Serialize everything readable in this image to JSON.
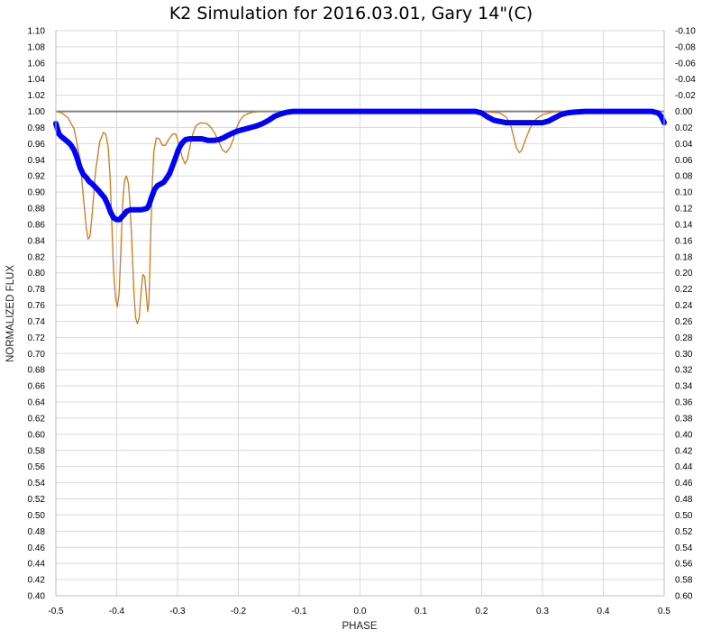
{
  "chart_data": {
    "type": "line",
    "title": "K2 Simulation for 2016.03.01, Gary 14\"(C)",
    "xlabel": "PHASE",
    "ylabel": "NORMALIZED FLUX",
    "xlim": [
      -0.5,
      0.5
    ],
    "ylim": [
      0.4,
      1.1
    ],
    "y2lim": [
      0.6,
      -0.1
    ],
    "grid": true,
    "x_ticks": [
      "-0.5",
      "-0.4",
      "-0.3",
      "-0.2",
      "-0.1",
      "0.0",
      "0.1",
      "0.2",
      "0.3",
      "0.4",
      "0.5"
    ],
    "y_ticks": [
      "0.40",
      "0.42",
      "0.44",
      "0.46",
      "0.48",
      "0.50",
      "0.52",
      "0.54",
      "0.56",
      "0.58",
      "0.60",
      "0.62",
      "0.64",
      "0.66",
      "0.68",
      "0.70",
      "0.72",
      "0.74",
      "0.76",
      "0.78",
      "0.80",
      "0.82",
      "0.84",
      "0.86",
      "0.88",
      "0.90",
      "0.92",
      "0.94",
      "0.96",
      "0.98",
      "1.00",
      "1.02",
      "1.04",
      "1.06",
      "1.08",
      "1.10"
    ],
    "y2_ticks": [
      "0.60",
      "0.58",
      "0.56",
      "0.54",
      "0.52",
      "0.50",
      "0.48",
      "0.46",
      "0.44",
      "0.42",
      "0.40",
      "0.38",
      "0.36",
      "0.34",
      "0.32",
      "0.30",
      "0.28",
      "0.26",
      "0.24",
      "0.22",
      "0.20",
      "0.18",
      "0.16",
      "0.14",
      "0.12",
      "0.10",
      "0.08",
      "0.06",
      "0.04",
      "0.02",
      "0.00",
      "-0.02",
      "-0.04",
      "-0.06",
      "-0.08",
      "-0.10"
    ],
    "reference_line": {
      "y": 1.0,
      "color": "#808080"
    },
    "series": [
      {
        "color": "#d07a1e",
        "style": "thin",
        "x": [
          -0.5,
          -0.49,
          -0.48,
          -0.47,
          -0.46,
          -0.455,
          -0.45,
          -0.447,
          -0.444,
          -0.44,
          -0.435,
          -0.428,
          -0.422,
          -0.418,
          -0.414,
          -0.411,
          -0.408,
          -0.405,
          -0.402,
          -0.399,
          -0.396,
          -0.393,
          -0.39,
          -0.387,
          -0.384,
          -0.381,
          -0.378,
          -0.375,
          -0.372,
          -0.369,
          -0.366,
          -0.363,
          -0.36,
          -0.357,
          -0.354,
          -0.351,
          -0.349,
          -0.347,
          -0.345,
          -0.342,
          -0.339,
          -0.335,
          -0.33,
          -0.325,
          -0.32,
          -0.314,
          -0.308,
          -0.303,
          -0.298,
          -0.293,
          -0.288,
          -0.284,
          -0.28,
          -0.275,
          -0.27,
          -0.262,
          -0.252,
          -0.245,
          -0.238,
          -0.232,
          -0.226,
          -0.22,
          -0.214,
          -0.208,
          -0.204,
          -0.198,
          -0.192,
          -0.185,
          -0.176,
          -0.165,
          -0.15,
          -0.135,
          -0.12,
          -0.1,
          0.0,
          0.2,
          0.23,
          0.24,
          0.247,
          0.252,
          0.257,
          0.262,
          0.266,
          0.272,
          0.28,
          0.29,
          0.3,
          0.315,
          0.33,
          0.35,
          0.4,
          0.48,
          0.5
        ],
        "y": [
          1.0,
          0.998,
          0.992,
          0.978,
          0.94,
          0.895,
          0.855,
          0.842,
          0.845,
          0.875,
          0.925,
          0.962,
          0.974,
          0.972,
          0.955,
          0.92,
          0.86,
          0.8,
          0.77,
          0.758,
          0.775,
          0.83,
          0.89,
          0.915,
          0.92,
          0.912,
          0.885,
          0.835,
          0.78,
          0.745,
          0.737,
          0.745,
          0.775,
          0.798,
          0.795,
          0.77,
          0.752,
          0.765,
          0.82,
          0.9,
          0.95,
          0.967,
          0.966,
          0.958,
          0.958,
          0.966,
          0.972,
          0.972,
          0.96,
          0.945,
          0.935,
          0.94,
          0.955,
          0.972,
          0.982,
          0.986,
          0.985,
          0.98,
          0.972,
          0.962,
          0.952,
          0.949,
          0.955,
          0.966,
          0.978,
          0.988,
          0.994,
          0.997,
          0.999,
          1.0,
          1.0,
          1.0,
          1.0,
          1.0,
          1.0,
          1.0,
          0.998,
          0.993,
          0.985,
          0.97,
          0.955,
          0.949,
          0.952,
          0.965,
          0.98,
          0.991,
          0.996,
          0.999,
          1.0,
          1.0,
          1.0,
          1.0,
          1.0
        ]
      },
      {
        "color": "#0000ff",
        "style": "thick",
        "x": [
          -0.5,
          -0.495,
          -0.49,
          -0.48,
          -0.475,
          -0.47,
          -0.465,
          -0.46,
          -0.455,
          -0.45,
          -0.445,
          -0.44,
          -0.43,
          -0.42,
          -0.415,
          -0.41,
          -0.405,
          -0.4,
          -0.395,
          -0.392,
          -0.388,
          -0.384,
          -0.378,
          -0.372,
          -0.366,
          -0.36,
          -0.355,
          -0.35,
          -0.347,
          -0.343,
          -0.338,
          -0.333,
          -0.328,
          -0.323,
          -0.318,
          -0.313,
          -0.308,
          -0.303,
          -0.299,
          -0.295,
          -0.291,
          -0.287,
          -0.28,
          -0.27,
          -0.26,
          -0.25,
          -0.24,
          -0.232,
          -0.225,
          -0.218,
          -0.21,
          -0.2,
          -0.19,
          -0.18,
          -0.17,
          -0.16,
          -0.15,
          -0.14,
          -0.13,
          -0.12,
          -0.11,
          -0.1,
          -0.09,
          0.0,
          0.1,
          0.19,
          0.2,
          0.21,
          0.22,
          0.24,
          0.26,
          0.28,
          0.3,
          0.31,
          0.32,
          0.33,
          0.34,
          0.35,
          0.37,
          0.4,
          0.45,
          0.48,
          0.49,
          0.495,
          0.5
        ],
        "y": [
          0.985,
          0.972,
          0.968,
          0.962,
          0.958,
          0.952,
          0.942,
          0.93,
          0.922,
          0.918,
          0.913,
          0.91,
          0.902,
          0.893,
          0.885,
          0.875,
          0.868,
          0.866,
          0.866,
          0.869,
          0.872,
          0.876,
          0.878,
          0.878,
          0.878,
          0.878,
          0.879,
          0.88,
          0.884,
          0.893,
          0.903,
          0.908,
          0.91,
          0.912,
          0.917,
          0.923,
          0.933,
          0.943,
          0.952,
          0.958,
          0.962,
          0.965,
          0.966,
          0.966,
          0.966,
          0.964,
          0.964,
          0.965,
          0.967,
          0.97,
          0.973,
          0.976,
          0.978,
          0.98,
          0.982,
          0.985,
          0.989,
          0.994,
          0.997,
          0.999,
          1.0,
          1.0,
          1.0,
          1.0,
          1.0,
          1.0,
          0.998,
          0.993,
          0.989,
          0.986,
          0.986,
          0.986,
          0.986,
          0.988,
          0.992,
          0.996,
          0.998,
          0.999,
          1.0,
          1.0,
          1.0,
          1.0,
          0.998,
          0.994,
          0.986
        ]
      }
    ]
  }
}
